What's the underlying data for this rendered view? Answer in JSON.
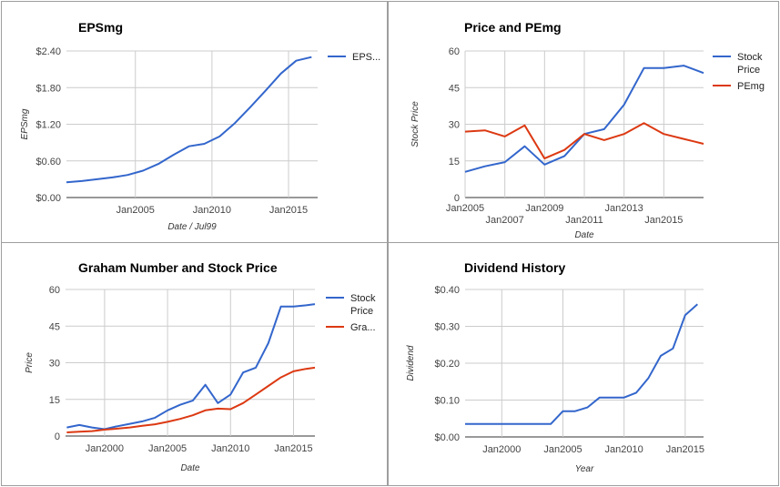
{
  "colors": {
    "blue": "#3366cc",
    "red": "#dc3912",
    "grid": "#cccccc",
    "axis": "#333333"
  },
  "chart_data": [
    {
      "type": "line",
      "title": "EPSmg",
      "xlabel": "Date / Jul99",
      "ylabel": "EPSmg",
      "x_ticks": [
        "Jan2005",
        "Jan2010",
        "Jan2015"
      ],
      "y_ticks": [
        "$0.00",
        "$0.60",
        "$1.20",
        "$1.80",
        "$2.40"
      ],
      "ylim": [
        0,
        2.4
      ],
      "xlim": [
        2000.5,
        2016.9
      ],
      "legend_position": "right",
      "series": [
        {
          "name": "EPS...",
          "color": "#3366cc",
          "x": [
            2000.5,
            2001.5,
            2002.5,
            2003.5,
            2004.5,
            2005.5,
            2006.5,
            2007.5,
            2008.5,
            2009.5,
            2010.5,
            2011.5,
            2012.5,
            2013.5,
            2014.5,
            2015.5,
            2016.5
          ],
          "y": [
            0.25,
            0.27,
            0.3,
            0.33,
            0.37,
            0.44,
            0.55,
            0.7,
            0.84,
            0.88,
            1.0,
            1.22,
            1.48,
            1.75,
            2.03,
            2.24,
            2.3
          ]
        }
      ]
    },
    {
      "type": "line",
      "title": "Price and PEmg",
      "xlabel": "Date",
      "ylabel": "Stock Price",
      "x_ticks_row1": [
        "Jan2005",
        "Jan2009",
        "Jan2013"
      ],
      "x_ticks_row2": [
        "Jan2007",
        "Jan2011",
        "Jan2015"
      ],
      "y_ticks": [
        "0",
        "15",
        "30",
        "45",
        "60"
      ],
      "ylim": [
        0,
        60
      ],
      "xlim": [
        2005,
        2017
      ],
      "legend_position": "right",
      "series": [
        {
          "name": "Stock Price",
          "color": "#3366cc",
          "x": [
            2005,
            2006,
            2007,
            2008,
            2009,
            2010,
            2011,
            2012,
            2013,
            2014,
            2015,
            2016,
            2017
          ],
          "y": [
            10.5,
            12.8,
            14.5,
            21,
            13.5,
            17,
            26,
            28,
            38,
            53,
            53,
            54,
            51
          ]
        },
        {
          "name": "PEmg",
          "color": "#dc3912",
          "x": [
            2005,
            2006,
            2007,
            2008,
            2009,
            2010,
            2011,
            2012,
            2013,
            2014,
            2015,
            2016,
            2017
          ],
          "y": [
            27,
            27.5,
            25,
            29.5,
            16,
            19.5,
            26,
            23.5,
            26,
            30.5,
            26,
            24,
            22
          ]
        }
      ]
    },
    {
      "type": "line",
      "title": "Graham Number and Stock Price",
      "xlabel": "Date",
      "ylabel": "Price",
      "x_ticks": [
        "Jan2000",
        "Jan2005",
        "Jan2010",
        "Jan2015"
      ],
      "y_ticks": [
        "0",
        "15",
        "30",
        "45",
        "60"
      ],
      "ylim": [
        0,
        60
      ],
      "xlim": [
        1996.9,
        2016.7
      ],
      "legend_position": "right",
      "series": [
        {
          "name": "Stock Price",
          "color": "#3366cc",
          "x": [
            1997,
            1998,
            1999,
            2000,
            2001,
            2002,
            2003,
            2004,
            2005,
            2006,
            2007,
            2008,
            2009,
            2010,
            2011,
            2012,
            2013,
            2014,
            2015,
            2016,
            2016.7
          ],
          "y": [
            3.5,
            4.5,
            3.5,
            2.8,
            4,
            5,
            6,
            7.5,
            10.5,
            12.8,
            14.5,
            21,
            13.5,
            17,
            26,
            28,
            38,
            53,
            53,
            53.5,
            54
          ]
        },
        {
          "name": "Gra...",
          "color": "#dc3912",
          "x": [
            1997,
            1998,
            1999,
            2000,
            2001,
            2002,
            2003,
            2004,
            2005,
            2006,
            2007,
            2008,
            2009,
            2010,
            2011,
            2012,
            2013,
            2014,
            2015,
            2016,
            2016.7
          ],
          "y": [
            1.5,
            1.8,
            2.0,
            2.6,
            3.0,
            3.5,
            4.2,
            4.8,
            5.8,
            7.0,
            8.5,
            10.5,
            11.2,
            11.0,
            13.5,
            17,
            20.5,
            24,
            26.5,
            27.5,
            28
          ]
        }
      ]
    },
    {
      "type": "line",
      "title": "Dividend History",
      "xlabel": "Year",
      "ylabel": "Dividend",
      "x_ticks": [
        "Jan2000",
        "Jan2005",
        "Jan2010",
        "Jan2015"
      ],
      "y_ticks": [
        "$0.00",
        "$0.10",
        "$0.20",
        "$0.30",
        "$0.40"
      ],
      "ylim": [
        0,
        0.4
      ],
      "xlim": [
        1997,
        2016.5
      ],
      "legend_position": "none",
      "series": [
        {
          "name": "",
          "color": "#3366cc",
          "x": [
            1997,
            1998,
            1999,
            2000,
            2001,
            2002,
            2003,
            2004,
            2005,
            2006,
            2007,
            2008,
            2009,
            2010,
            2011,
            2012,
            2013,
            2014,
            2015,
            2016
          ],
          "y": [
            0.035,
            0.035,
            0.035,
            0.035,
            0.035,
            0.035,
            0.035,
            0.035,
            0.07,
            0.07,
            0.08,
            0.107,
            0.107,
            0.107,
            0.12,
            0.16,
            0.22,
            0.24,
            0.33,
            0.36
          ]
        }
      ]
    }
  ]
}
